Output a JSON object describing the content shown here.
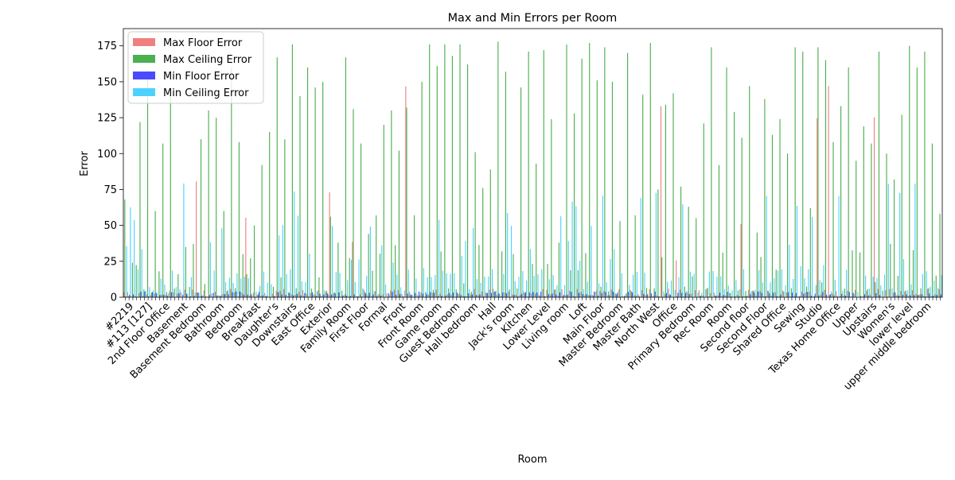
{
  "chart_data": {
    "type": "bar",
    "title": "Max and Min Errors per Room",
    "xlabel": "Room",
    "ylabel": "Error",
    "ylim": [
      0,
      187
    ],
    "yticks": [
      0,
      25,
      50,
      75,
      100,
      125,
      150,
      175
    ],
    "legend_position": "top-left",
    "series": [
      {
        "name": "Max Floor Error",
        "color": "#f08080"
      },
      {
        "name": "Max Ceiling Error",
        "color": "#4caf50"
      },
      {
        "name": "Min Floor Error",
        "color": "#4a4aff"
      },
      {
        "name": "Min Ceiling Error",
        "color": "#4dd2ff"
      }
    ],
    "visible_category_labels": [
      "#2219",
      "#113 [127]",
      "2nd Floor Office",
      "Basement",
      "Basement Bedroom",
      "Bathroom",
      "Bedroom",
      "Breakfast",
      "Daughter's",
      "Downstairs",
      "East Office",
      "Exterior",
      "Family Room",
      "First Floor",
      "Formal",
      "Front",
      "Front Room",
      "Game room",
      "Guest Bedroom",
      "Hall bedroom",
      "Hall",
      "Jack's room",
      "Kitchen",
      "Lower Level",
      "Living room",
      "Loft",
      "Main Floor",
      "Master Bedroom",
      "Master Bath",
      "North West",
      "Office",
      "Primary Bedroom",
      "Rec Room",
      "Room",
      "Second floor",
      "Second Floor",
      "Shared Office",
      "Sewing",
      "Studio",
      "Texas Home Office",
      "Upper",
      "Upstairs",
      "Women's",
      "lower level",
      "upper middle bedroom"
    ],
    "max_ceiling_peaks": [
      68,
      24,
      122,
      158,
      60,
      107,
      140,
      16,
      35,
      37,
      110,
      130,
      125,
      60,
      160,
      108,
      16,
      50,
      92,
      115,
      167,
      110,
      176,
      140,
      160,
      146,
      150,
      56,
      38,
      167,
      131,
      107,
      44,
      57,
      120,
      130,
      102,
      132,
      57,
      150,
      176,
      161,
      176,
      168,
      176,
      162,
      101,
      76,
      89,
      178,
      157,
      30,
      146,
      171,
      93,
      172,
      124,
      38,
      176,
      128,
      166,
      177,
      151,
      174,
      150,
      53,
      170,
      57,
      141,
      177,
      75,
      134,
      142,
      77,
      63,
      55,
      121,
      174,
      92,
      160,
      129,
      111,
      147,
      45,
      138,
      113,
      124,
      100,
      174,
      171,
      62,
      174,
      165,
      108,
      133,
      160,
      95,
      119,
      107,
      171,
      100,
      82,
      127,
      175,
      160,
      171,
      107,
      58
    ]
  }
}
